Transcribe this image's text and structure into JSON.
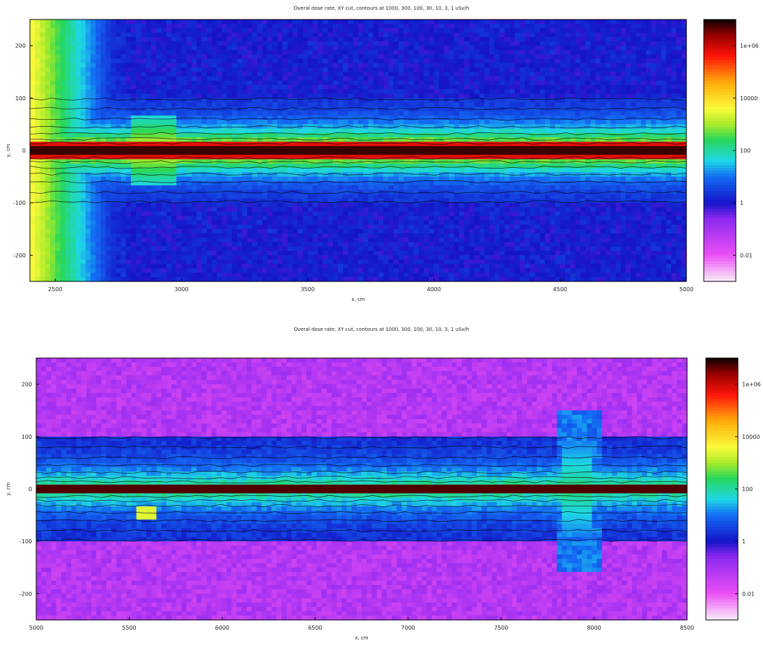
{
  "chart_data": [
    {
      "type": "heatmap",
      "title": "Overal dose rate, XY cut, contours at 1000, 300, 100, 30, 10, 3, 1 uSv/h",
      "xlabel": "x, cm",
      "ylabel": "y, cm",
      "xlim": [
        2400,
        5000
      ],
      "ylim": [
        -250,
        250
      ],
      "x_ticks": [
        "2500",
        "3000",
        "3500",
        "4000",
        "4500",
        "5000"
      ],
      "x_tick_values": [
        2500,
        3000,
        3500,
        4000,
        4500,
        5000
      ],
      "y_ticks": [
        "200",
        "100",
        "0",
        "-100",
        "-200"
      ],
      "y_tick_values": [
        200,
        100,
        0,
        -100,
        -200
      ],
      "colorbar": {
        "scale": "log",
        "range": [
          0.001,
          10000000
        ],
        "ticks": [
          "1e+06",
          "10000",
          "100",
          "1",
          "0.01"
        ],
        "tick_values": [
          1000000,
          10000,
          100,
          1,
          0.01
        ]
      },
      "contour_levels": [
        1000,
        300,
        100,
        30,
        10,
        3,
        1
      ],
      "units": "uSv/h",
      "colors": {
        "beam_core": "#8b0000",
        "high": "#ffff40",
        "mid": "#20d0e0",
        "low": "#2020e0",
        "background": "#8040ff"
      }
    },
    {
      "type": "heatmap",
      "title": "Overal dose rate, XY cut, contours at 1000, 300, 100, 30, 10, 3, 1 uSv/h",
      "xlabel": "x, cm",
      "ylabel": "y, cm",
      "xlim": [
        5000,
        8500
      ],
      "ylim": [
        -250,
        250
      ],
      "x_ticks": [
        "5000",
        "5500",
        "6000",
        "6500",
        "7000",
        "7500",
        "8000",
        "8500"
      ],
      "x_tick_values": [
        5000,
        5500,
        6000,
        6500,
        7000,
        7500,
        8000,
        8500
      ],
      "y_ticks": [
        "200",
        "100",
        "0",
        "-100",
        "-200"
      ],
      "y_tick_values": [
        200,
        100,
        0,
        -100,
        -200
      ],
      "colorbar": {
        "scale": "log",
        "range": [
          0.001,
          10000000
        ],
        "ticks": [
          "1e+06",
          "10000",
          "100",
          "1",
          "0.01"
        ],
        "tick_values": [
          1000000,
          10000,
          100,
          1,
          0.01
        ]
      },
      "contour_levels": [
        1000,
        300,
        100,
        30,
        10,
        3,
        1
      ],
      "units": "uSv/h",
      "colors": {
        "beam_core": "#8b0000",
        "high": "#ffff40",
        "mid": "#20d0e0",
        "low": "#2020e0",
        "background": "#8040ff"
      }
    }
  ]
}
